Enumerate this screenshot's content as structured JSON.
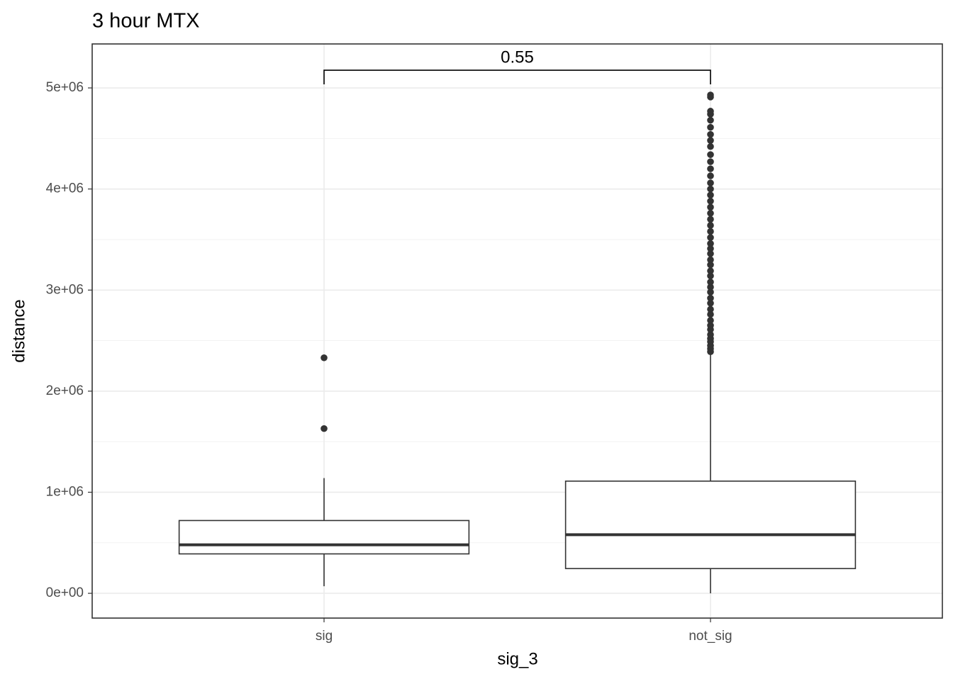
{
  "chart_data": {
    "type": "boxplot",
    "title": "3 hour MTX",
    "x_label": "sig_3",
    "y_label": "distance",
    "categories": [
      "sig",
      "not_sig"
    ],
    "boxes": [
      {
        "low": 70000,
        "q1": 390000,
        "median": 480000,
        "q3": 720000,
        "high": 1140000,
        "outliers": [
          1630000,
          2330000
        ]
      },
      {
        "low": 0,
        "q1": 245000,
        "median": 580000,
        "q3": 1110000,
        "high": 2380000,
        "outliers": [
          2390000,
          2420000,
          2450000,
          2490000,
          2520000,
          2560000,
          2610000,
          2650000,
          2700000,
          2760000,
          2810000,
          2870000,
          2920000,
          2980000,
          3030000,
          3080000,
          3140000,
          3190000,
          3250000,
          3300000,
          3360000,
          3410000,
          3460000,
          3520000,
          3580000,
          3640000,
          3700000,
          3760000,
          3820000,
          3880000,
          3940000,
          4000000,
          4060000,
          4130000,
          4200000,
          4270000,
          4340000,
          4420000,
          4480000,
          4540000,
          4610000,
          4680000,
          4740000,
          4770000,
          4910000,
          4930000
        ]
      }
    ],
    "color": "#333333",
    "ylim": [
      -245000,
      5435000
    ],
    "yticks": [
      {
        "value": 0,
        "label": "0e+00"
      },
      {
        "value": 1000000,
        "label": "1e+06"
      },
      {
        "value": 2000000,
        "label": "2e+06"
      },
      {
        "value": 3000000,
        "label": "3e+06"
      },
      {
        "value": 4000000,
        "label": "4e+06"
      },
      {
        "value": 5000000,
        "label": "5e+06"
      }
    ],
    "yminor": [
      500000,
      1500000,
      2500000,
      3500000,
      4500000
    ],
    "grid": true,
    "annotation": {
      "text": "0.55",
      "y": 5175000,
      "tip_y": 5035000
    }
  }
}
